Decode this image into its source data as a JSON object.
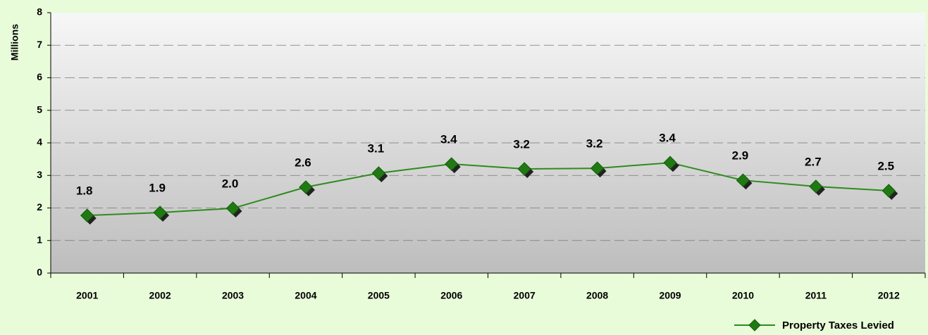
{
  "chart_data": {
    "type": "line",
    "y_label": "Millions",
    "categories": [
      "2001",
      "2002",
      "2003",
      "2004",
      "2005",
      "2006",
      "2007",
      "2008",
      "2009",
      "2010",
      "2011",
      "2012"
    ],
    "series": [
      {
        "name": "Property Taxes Levied",
        "color": "#2e8b1e",
        "marker_color": "#1f7a12",
        "values": [
          1.77,
          1.86,
          1.99,
          2.64,
          3.07,
          3.35,
          3.2,
          3.22,
          3.39,
          2.85,
          2.66,
          2.53
        ],
        "value_labels": [
          "1.8",
          "1.9",
          "2.0",
          "2.6",
          "3.1",
          "3.4",
          "3.2",
          "3.2",
          "3.4",
          "2.9",
          "2.7",
          "2.5"
        ]
      }
    ],
    "ylim": [
      0,
      8
    ],
    "yticks": [
      0,
      1,
      2,
      3,
      4,
      5,
      6,
      7,
      8
    ],
    "grid": true,
    "legend": "bottom-right"
  }
}
